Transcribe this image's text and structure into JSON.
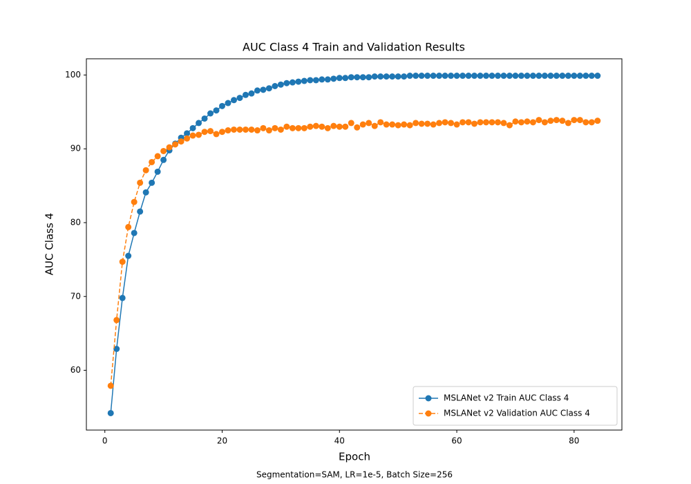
{
  "chart_data": {
    "type": "line",
    "title": "AUC Class 4 Train and Validation Results",
    "xlabel": "Epoch",
    "ylabel": "AUC Class 4",
    "caption": "Segmentation=SAM, LR=1e-5, Batch Size=256",
    "x": [
      1,
      2,
      3,
      4,
      5,
      6,
      7,
      8,
      9,
      10,
      11,
      12,
      13,
      14,
      15,
      16,
      17,
      18,
      19,
      20,
      21,
      22,
      23,
      24,
      25,
      26,
      27,
      28,
      29,
      30,
      31,
      32,
      33,
      34,
      35,
      36,
      37,
      38,
      39,
      40,
      41,
      42,
      43,
      44,
      45,
      46,
      47,
      48,
      49,
      50,
      51,
      52,
      53,
      54,
      55,
      56,
      57,
      58,
      59,
      60,
      61,
      62,
      63,
      64,
      65,
      66,
      67,
      68,
      69,
      70,
      71,
      72,
      73,
      74,
      75,
      76,
      77,
      78,
      79,
      80,
      81,
      82,
      83,
      84
    ],
    "series": [
      {
        "name": "MSLANet v2 Train AUC Class 4",
        "color": "#1f77b4",
        "linestyle": "solid",
        "values": [
          54.2,
          62.9,
          69.8,
          75.5,
          78.6,
          81.5,
          84.1,
          85.4,
          86.9,
          88.5,
          89.8,
          90.7,
          91.5,
          92.1,
          92.8,
          93.5,
          94.1,
          94.8,
          95.2,
          95.8,
          96.2,
          96.6,
          96.9,
          97.3,
          97.5,
          97.9,
          98.0,
          98.2,
          98.5,
          98.7,
          98.9,
          99.0,
          99.1,
          99.2,
          99.3,
          99.3,
          99.4,
          99.4,
          99.5,
          99.6,
          99.6,
          99.7,
          99.7,
          99.7,
          99.7,
          99.8,
          99.8,
          99.8,
          99.8,
          99.8,
          99.8,
          99.9,
          99.9,
          99.9,
          99.9,
          99.9,
          99.9,
          99.9,
          99.9,
          99.9,
          99.9,
          99.9,
          99.9,
          99.9,
          99.9,
          99.9,
          99.9,
          99.9,
          99.9,
          99.9,
          99.9,
          99.9,
          99.9,
          99.9,
          99.9,
          99.9,
          99.9,
          99.9,
          99.9,
          99.9,
          99.9,
          99.9,
          99.9,
          99.9
        ]
      },
      {
        "name": "MSLANet v2 Validation AUC Class 4",
        "color": "#ff7f0e",
        "linestyle": "dashed",
        "values": [
          57.9,
          66.8,
          74.7,
          79.4,
          82.8,
          85.4,
          87.1,
          88.2,
          89.0,
          89.7,
          90.2,
          90.6,
          91.0,
          91.4,
          91.8,
          91.9,
          92.3,
          92.4,
          92.0,
          92.3,
          92.5,
          92.6,
          92.6,
          92.6,
          92.6,
          92.5,
          92.8,
          92.5,
          92.8,
          92.6,
          93.0,
          92.8,
          92.8,
          92.8,
          93.0,
          93.1,
          93.0,
          92.8,
          93.1,
          93.0,
          93.0,
          93.5,
          92.9,
          93.3,
          93.5,
          93.1,
          93.6,
          93.3,
          93.3,
          93.2,
          93.3,
          93.2,
          93.5,
          93.4,
          93.4,
          93.3,
          93.5,
          93.6,
          93.5,
          93.3,
          93.6,
          93.6,
          93.4,
          93.6,
          93.6,
          93.6,
          93.6,
          93.5,
          93.2,
          93.7,
          93.6,
          93.7,
          93.6,
          93.9,
          93.6,
          93.8,
          93.9,
          93.8,
          93.5,
          93.9,
          93.9,
          93.6,
          93.6,
          93.8
        ]
      }
    ],
    "xlim": [
      -3.15,
      88.15
    ],
    "ylim": [
      51.9,
      102.2
    ],
    "xticks": [
      0,
      20,
      40,
      60,
      80
    ],
    "yticks": [
      60,
      70,
      80,
      90,
      100
    ],
    "grid": false,
    "legend": "lower right"
  }
}
